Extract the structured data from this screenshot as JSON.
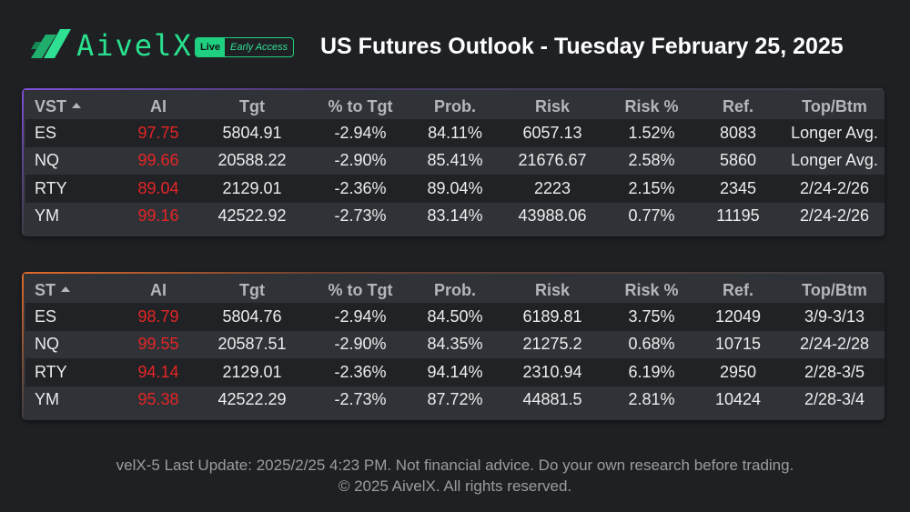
{
  "header": {
    "brand": "AivelX",
    "badge_live": "Live",
    "badge_early": "Early Access",
    "title": "US Futures Outlook - Tuesday February 25, 2025",
    "icon": "aivelx-logo-icon"
  },
  "colors": {
    "background": "#1e2023",
    "panel": "#2f3237",
    "row_dark": "#202226",
    "brand_green": "#29e08e",
    "ai_red": "#e52525",
    "vst_accent": "#7e4fd8",
    "st_accent": "#e06a2a"
  },
  "vst": {
    "columns": [
      "VST",
      "AI",
      "Tgt",
      "% to Tgt",
      "Prob.",
      "Risk",
      "Risk %",
      "Ref.",
      "Top/Btm"
    ],
    "rows": [
      [
        "ES",
        "97.75",
        "5804.91",
        "-2.94%",
        "84.11%",
        "6057.13",
        "1.52%",
        "8083",
        "Longer Avg."
      ],
      [
        "NQ",
        "99.66",
        "20588.22",
        "-2.90%",
        "85.41%",
        "21676.67",
        "2.58%",
        "5860",
        "Longer Avg."
      ],
      [
        "RTY",
        "89.04",
        "2129.01",
        "-2.36%",
        "89.04%",
        "2223",
        "2.15%",
        "2345",
        "2/24-2/26"
      ],
      [
        "YM",
        "99.16",
        "42522.92",
        "-2.73%",
        "83.14%",
        "43988.06",
        "0.77%",
        "11195",
        "2/24-2/26"
      ]
    ]
  },
  "st": {
    "columns": [
      "ST",
      "AI",
      "Tgt",
      "% to Tgt",
      "Prob.",
      "Risk",
      "Risk %",
      "Ref.",
      "Top/Btm"
    ],
    "rows": [
      [
        "ES",
        "98.79",
        "5804.76",
        "-2.94%",
        "84.50%",
        "6189.81",
        "3.75%",
        "12049",
        "3/9-3/13"
      ],
      [
        "NQ",
        "99.55",
        "20587.51",
        "-2.90%",
        "84.35%",
        "21275.2",
        "0.68%",
        "10715",
        "2/24-2/28"
      ],
      [
        "RTY",
        "94.14",
        "2129.01",
        "-2.36%",
        "94.14%",
        "2310.94",
        "6.19%",
        "2950",
        "2/28-3/5"
      ],
      [
        "YM",
        "95.38",
        "42522.29",
        "-2.73%",
        "87.72%",
        "44881.5",
        "2.81%",
        "10424",
        "2/28-3/4"
      ]
    ]
  },
  "footer": {
    "line1": "velX-5 Last Update: 2025/2/25 4:23 PM. Not financial advice. Do your own research before trading.",
    "line2": "© 2025 AivelX. All rights reserved."
  }
}
